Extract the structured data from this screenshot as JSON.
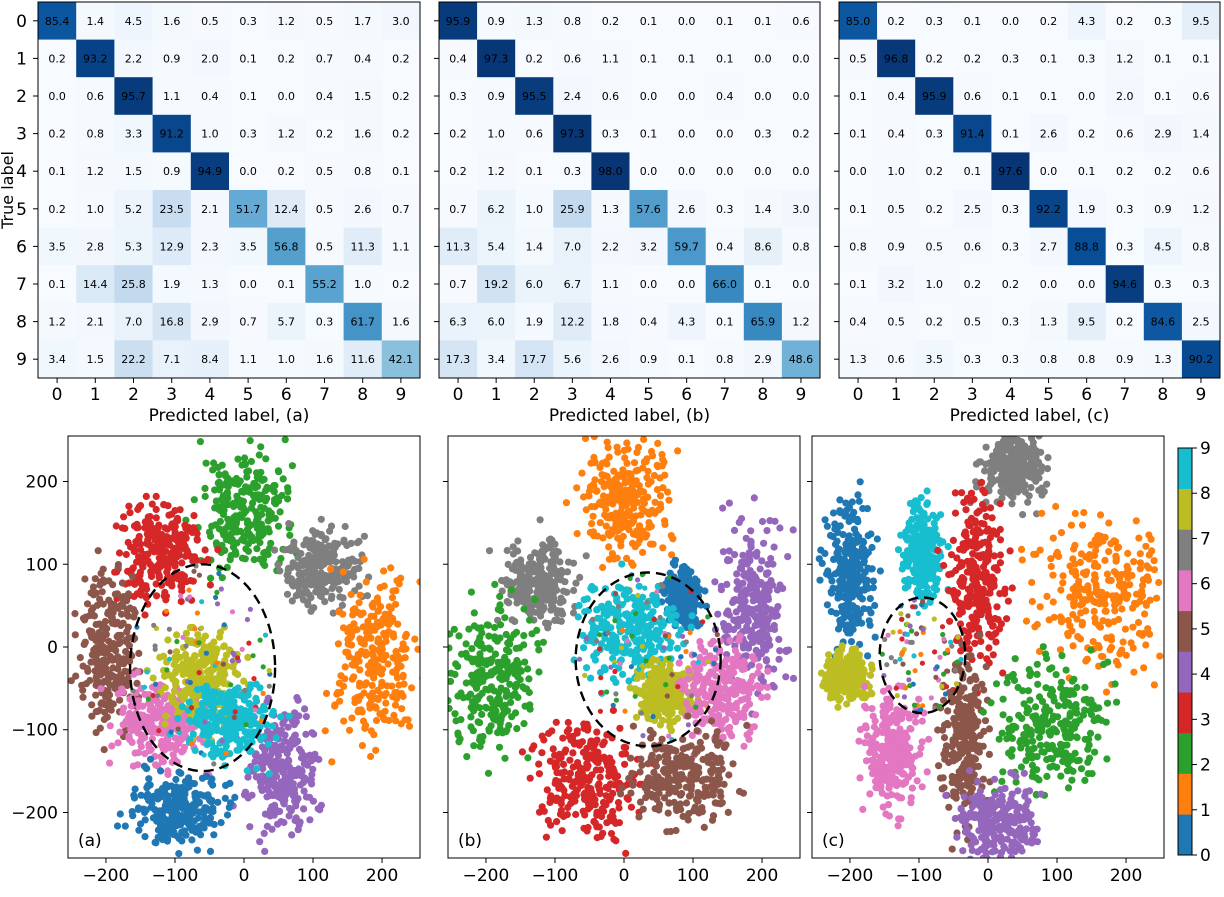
{
  "chart_data": [
    {
      "type": "heatmap",
      "panel": "a",
      "xlabel": "Predicted label, (a)",
      "ylabel": "True label",
      "xticks": [
        "0",
        "1",
        "2",
        "3",
        "4",
        "5",
        "6",
        "7",
        "8",
        "9"
      ],
      "yticks": [
        "0",
        "1",
        "2",
        "3",
        "4",
        "5",
        "6",
        "7",
        "8",
        "9"
      ],
      "cmap": "Blues",
      "vmax": 100,
      "matrix": [
        [
          "85.4",
          "1.4",
          "4.5",
          "1.6",
          "0.5",
          "0.3",
          "1.2",
          "0.5",
          "1.7",
          "3.0"
        ],
        [
          "0.2",
          "93.2",
          "2.2",
          "0.9",
          "2.0",
          "0.1",
          "0.2",
          "0.7",
          "0.4",
          "0.2"
        ],
        [
          "0.0",
          "0.6",
          "95.7",
          "1.1",
          "0.4",
          "0.1",
          "0.0",
          "0.4",
          "1.5",
          "0.2"
        ],
        [
          "0.2",
          "0.8",
          "3.3",
          "91.2",
          "1.0",
          "0.3",
          "1.2",
          "0.2",
          "1.6",
          "0.2"
        ],
        [
          "0.1",
          "1.2",
          "1.5",
          "0.9",
          "94.9",
          "0.0",
          "0.2",
          "0.5",
          "0.8",
          "0.1"
        ],
        [
          "0.2",
          "1.0",
          "5.2",
          "23.5",
          "2.1",
          "51.7",
          "12.4",
          "0.5",
          "2.6",
          "0.7"
        ],
        [
          "3.5",
          "2.8",
          "5.3",
          "12.9",
          "2.3",
          "3.5",
          "56.8",
          "0.5",
          "11.3",
          "1.1"
        ],
        [
          "0.1",
          "14.4",
          "25.8",
          "1.9",
          "1.3",
          "0.0",
          "0.1",
          "55.2",
          "1.0",
          "0.2"
        ],
        [
          "1.2",
          "2.1",
          "7.0",
          "16.8",
          "2.9",
          "0.7",
          "5.7",
          "0.3",
          "61.7",
          "1.6"
        ],
        [
          "3.4",
          "1.5",
          "22.2",
          "7.1",
          "8.4",
          "1.1",
          "1.0",
          "1.6",
          "11.6",
          "42.1"
        ]
      ]
    },
    {
      "type": "heatmap",
      "panel": "b",
      "xlabel": "Predicted label, (b)",
      "ylabel": "",
      "xticks": [
        "0",
        "1",
        "2",
        "3",
        "4",
        "5",
        "6",
        "7",
        "8",
        "9"
      ],
      "cmap": "Blues",
      "vmax": 100,
      "matrix": [
        [
          "95.9",
          "0.9",
          "1.3",
          "0.8",
          "0.2",
          "0.1",
          "0.0",
          "0.1",
          "0.1",
          "0.6"
        ],
        [
          "0.4",
          "97.3",
          "0.2",
          "0.6",
          "1.1",
          "0.1",
          "0.1",
          "0.1",
          "0.0",
          "0.0"
        ],
        [
          "0.3",
          "0.9",
          "95.5",
          "2.4",
          "0.6",
          "0.0",
          "0.0",
          "0.4",
          "0.0",
          "0.0"
        ],
        [
          "0.2",
          "1.0",
          "0.6",
          "97.3",
          "0.3",
          "0.1",
          "0.0",
          "0.0",
          "0.3",
          "0.2"
        ],
        [
          "0.2",
          "1.2",
          "0.1",
          "0.3",
          "98.0",
          "0.0",
          "0.0",
          "0.0",
          "0.0",
          "0.0"
        ],
        [
          "0.7",
          "6.2",
          "1.0",
          "25.9",
          "1.3",
          "57.6",
          "2.6",
          "0.3",
          "1.4",
          "3.0"
        ],
        [
          "11.3",
          "5.4",
          "1.4",
          "7.0",
          "2.2",
          "3.2",
          "59.7",
          "0.4",
          "8.6",
          "0.8"
        ],
        [
          "0.7",
          "19.2",
          "6.0",
          "6.7",
          "1.1",
          "0.0",
          "0.0",
          "66.0",
          "0.1",
          "0.0"
        ],
        [
          "6.3",
          "6.0",
          "1.9",
          "12.2",
          "1.8",
          "0.4",
          "4.3",
          "0.1",
          "65.9",
          "1.2"
        ],
        [
          "17.3",
          "3.4",
          "17.7",
          "5.6",
          "2.6",
          "0.9",
          "0.1",
          "0.8",
          "2.9",
          "48.6"
        ]
      ]
    },
    {
      "type": "heatmap",
      "panel": "c",
      "xlabel": "Predicted label, (c)",
      "ylabel": "",
      "xticks": [
        "0",
        "1",
        "2",
        "3",
        "4",
        "5",
        "6",
        "7",
        "8",
        "9"
      ],
      "cmap": "Blues",
      "vmax": 100,
      "matrix": [
        [
          "85.0",
          "0.2",
          "0.3",
          "0.1",
          "0.0",
          "0.2",
          "4.3",
          "0.2",
          "0.3",
          "9.5"
        ],
        [
          "0.5",
          "96.8",
          "0.2",
          "0.2",
          "0.3",
          "0.1",
          "0.3",
          "1.2",
          "0.1",
          "0.1"
        ],
        [
          "0.1",
          "0.4",
          "95.9",
          "0.6",
          "0.1",
          "0.1",
          "0.0",
          "2.0",
          "0.1",
          "0.6"
        ],
        [
          "0.1",
          "0.4",
          "0.3",
          "91.4",
          "0.1",
          "2.6",
          "0.2",
          "0.6",
          "2.9",
          "1.4"
        ],
        [
          "0.0",
          "1.0",
          "0.2",
          "0.1",
          "97.6",
          "0.0",
          "0.1",
          "0.2",
          "0.2",
          "0.6"
        ],
        [
          "0.1",
          "0.5",
          "0.2",
          "2.5",
          "0.3",
          "92.2",
          "1.9",
          "0.3",
          "0.9",
          "1.2"
        ],
        [
          "0.8",
          "0.9",
          "0.5",
          "0.6",
          "0.3",
          "2.7",
          "88.8",
          "0.3",
          "4.5",
          "0.8"
        ],
        [
          "0.1",
          "3.2",
          "1.0",
          "0.2",
          "0.2",
          "0.0",
          "0.0",
          "94.6",
          "0.3",
          "0.3"
        ],
        [
          "0.4",
          "0.5",
          "0.2",
          "0.5",
          "0.3",
          "1.3",
          "9.5",
          "0.2",
          "84.6",
          "2.5"
        ],
        [
          "1.3",
          "0.6",
          "3.5",
          "0.3",
          "0.3",
          "0.8",
          "0.8",
          "0.9",
          "1.3",
          "90.2"
        ]
      ]
    },
    {
      "type": "scatter",
      "panel": "a",
      "annotation": "(a)",
      "xlim": [
        -255,
        255
      ],
      "ylim": [
        -255,
        255
      ],
      "xticks": [
        -200,
        -100,
        0,
        100,
        200
      ],
      "yticks": [
        -200,
        -100,
        0,
        100,
        200
      ],
      "clusters": [
        {
          "label": 2,
          "center": [
            0,
            165
          ],
          "spread": [
            62,
            70
          ]
        },
        {
          "label": 7,
          "center": [
            112,
            95
          ],
          "spread": [
            55,
            45
          ]
        },
        {
          "label": 3,
          "center": [
            -120,
            112
          ],
          "spread": [
            60,
            62
          ]
        },
        {
          "label": 1,
          "center": [
            190,
            -10
          ],
          "spread": [
            55,
            95
          ]
        },
        {
          "label": 5,
          "center": [
            -195,
            -5
          ],
          "spread": [
            40,
            90
          ]
        },
        {
          "label": 6,
          "center": [
            -120,
            -90
          ],
          "spread": [
            65,
            50
          ]
        },
        {
          "label": 4,
          "center": [
            55,
            -155
          ],
          "spread": [
            50,
            75
          ]
        },
        {
          "label": 0,
          "center": [
            -95,
            -195
          ],
          "spread": [
            62,
            40
          ]
        },
        {
          "label": 8,
          "center": [
            -60,
            -40
          ],
          "spread": [
            55,
            60
          ]
        },
        {
          "label": 9,
          "center": [
            -20,
            -90
          ],
          "spread": [
            60,
            45
          ]
        }
      ],
      "ellipse": {
        "center": [
          -60,
          -25
        ],
        "radii": [
          105,
          125
        ]
      }
    },
    {
      "type": "scatter",
      "panel": "b",
      "annotation": "(b)",
      "xlim": [
        -255,
        255
      ],
      "ylim": [
        -255,
        255
      ],
      "xticks": [
        -200,
        -100,
        0,
        100,
        200
      ],
      "clusters": [
        {
          "label": 1,
          "center": [
            0,
            175
          ],
          "spread": [
            65,
            70
          ]
        },
        {
          "label": 7,
          "center": [
            -120,
            75
          ],
          "spread": [
            50,
            48
          ]
        },
        {
          "label": 4,
          "center": [
            185,
            50
          ],
          "spread": [
            45,
            90
          ]
        },
        {
          "label": 0,
          "center": [
            85,
            60
          ],
          "spread": [
            25,
            35
          ]
        },
        {
          "label": 2,
          "center": [
            -190,
            -40
          ],
          "spread": [
            65,
            80
          ]
        },
        {
          "label": 9,
          "center": [
            5,
            20
          ],
          "spread": [
            70,
            55
          ]
        },
        {
          "label": 8,
          "center": [
            60,
            -55
          ],
          "spread": [
            40,
            35
          ]
        },
        {
          "label": 6,
          "center": [
            140,
            -55
          ],
          "spread": [
            55,
            55
          ]
        },
        {
          "label": 3,
          "center": [
            -55,
            -160
          ],
          "spread": [
            70,
            65
          ]
        },
        {
          "label": 5,
          "center": [
            85,
            -155
          ],
          "spread": [
            75,
            55
          ]
        }
      ],
      "ellipse": {
        "center": [
          35,
          -15
        ],
        "radii": [
          105,
          105
        ]
      }
    },
    {
      "type": "scatter",
      "panel": "c",
      "annotation": "(c)",
      "xlim": [
        -255,
        255
      ],
      "ylim": [
        -255,
        255
      ],
      "xticks": [
        -200,
        -100,
        0,
        100,
        200
      ],
      "clusters": [
        {
          "label": 7,
          "center": [
            35,
            215
          ],
          "spread": [
            42,
            42
          ]
        },
        {
          "label": 0,
          "center": [
            -200,
            90
          ],
          "spread": [
            35,
            85
          ]
        },
        {
          "label": 9,
          "center": [
            -95,
            110
          ],
          "spread": [
            28,
            55
          ]
        },
        {
          "label": 3,
          "center": [
            -15,
            85
          ],
          "spread": [
            38,
            95
          ]
        },
        {
          "label": 1,
          "center": [
            165,
            60
          ],
          "spread": [
            85,
            85
          ]
        },
        {
          "label": 8,
          "center": [
            -205,
            -35
          ],
          "spread": [
            30,
            28
          ]
        },
        {
          "label": 6,
          "center": [
            -140,
            -130
          ],
          "spread": [
            38,
            72
          ]
        },
        {
          "label": 5,
          "center": [
            -35,
            -110
          ],
          "spread": [
            30,
            95
          ]
        },
        {
          "label": 2,
          "center": [
            95,
            -95
          ],
          "spread": [
            80,
            72
          ]
        },
        {
          "label": 4,
          "center": [
            15,
            -215
          ],
          "spread": [
            55,
            52
          ]
        }
      ],
      "ellipse": {
        "center": [
          -95,
          -10
        ],
        "radii": [
          62,
          70
        ]
      }
    }
  ],
  "colorbar": {
    "ticks": [
      "0",
      "1",
      "2",
      "3",
      "4",
      "5",
      "6",
      "7",
      "8",
      "9"
    ],
    "colors": [
      "#1f77b4",
      "#ff7f0e",
      "#2ca02c",
      "#d62728",
      "#9467bd",
      "#8c564b",
      "#e377c2",
      "#7f7f7f",
      "#bcbd22",
      "#17becf"
    ]
  }
}
